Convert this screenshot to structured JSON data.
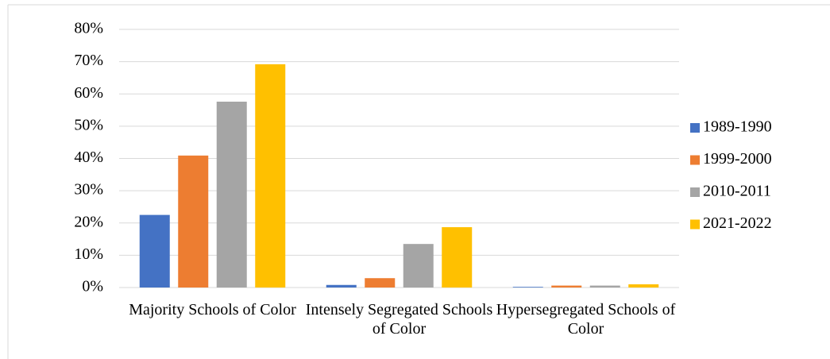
{
  "chart_data": {
    "type": "bar",
    "categories": [
      "Majority Schools of Color",
      "Intensely Segregated Schools of Color",
      "Hypersegregated Schools of Color"
    ],
    "series": [
      {
        "name": "1989-1990",
        "color": "#4472c4",
        "values": [
          22.5,
          0.8,
          0.2
        ]
      },
      {
        "name": "1999-2000",
        "color": "#ed7d31",
        "values": [
          40.9,
          2.9,
          0.6
        ]
      },
      {
        "name": "2010-2011",
        "color": "#a5a5a5",
        "values": [
          57.6,
          13.5,
          0.6
        ]
      },
      {
        "name": "2021-2022",
        "color": "#ffc000",
        "values": [
          69.2,
          18.7,
          1.0
        ]
      }
    ],
    "ylim": [
      0,
      80
    ],
    "yticks": [
      {
        "value": 0,
        "label": "0%"
      },
      {
        "value": 10,
        "label": "10%"
      },
      {
        "value": 20,
        "label": "20%"
      },
      {
        "value": 30,
        "label": "30%"
      },
      {
        "value": 40,
        "label": "40%"
      },
      {
        "value": 50,
        "label": "50%"
      },
      {
        "value": 60,
        "label": "60%"
      },
      {
        "value": 70,
        "label": "70%"
      },
      {
        "value": 80,
        "label": "80%"
      }
    ],
    "grid": true,
    "legend": "right"
  }
}
